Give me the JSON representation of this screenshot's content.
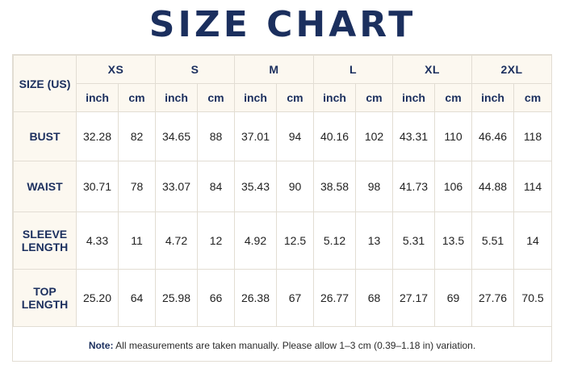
{
  "title": "SIZE CHART",
  "corner_label": "SIZE (US)",
  "sizes": [
    "XS",
    "S",
    "M",
    "L",
    "XL",
    "2XL"
  ],
  "units": [
    "inch",
    "cm"
  ],
  "rows": [
    {
      "label_lines": [
        "BUST"
      ],
      "values": [
        "32.28",
        "82",
        "34.65",
        "88",
        "37.01",
        "94",
        "40.16",
        "102",
        "43.31",
        "110",
        "46.46",
        "118"
      ]
    },
    {
      "label_lines": [
        "WAIST"
      ],
      "values": [
        "30.71",
        "78",
        "33.07",
        "84",
        "35.43",
        "90",
        "38.58",
        "98",
        "41.73",
        "106",
        "44.88",
        "114"
      ]
    },
    {
      "label_lines": [
        "SLEEVE",
        "LENGTH"
      ],
      "values": [
        "4.33",
        "11",
        "4.72",
        "12",
        "4.92",
        "12.5",
        "5.12",
        "13",
        "5.31",
        "13.5",
        "5.51",
        "14"
      ]
    },
    {
      "label_lines": [
        "TOP",
        "LENGTH"
      ],
      "values": [
        "25.20",
        "64",
        "25.98",
        "66",
        "26.38",
        "67",
        "26.77",
        "68",
        "27.17",
        "69",
        "27.76",
        "70.5"
      ]
    }
  ],
  "note": {
    "label": "Note:",
    "text": "All measurements are taken manually. Please allow 1–3 cm (0.39–1.18 in) variation."
  },
  "colors": {
    "navy": "#1b2f5e",
    "header_bg": "#fcf8f0",
    "border": "#e2ddd3"
  }
}
